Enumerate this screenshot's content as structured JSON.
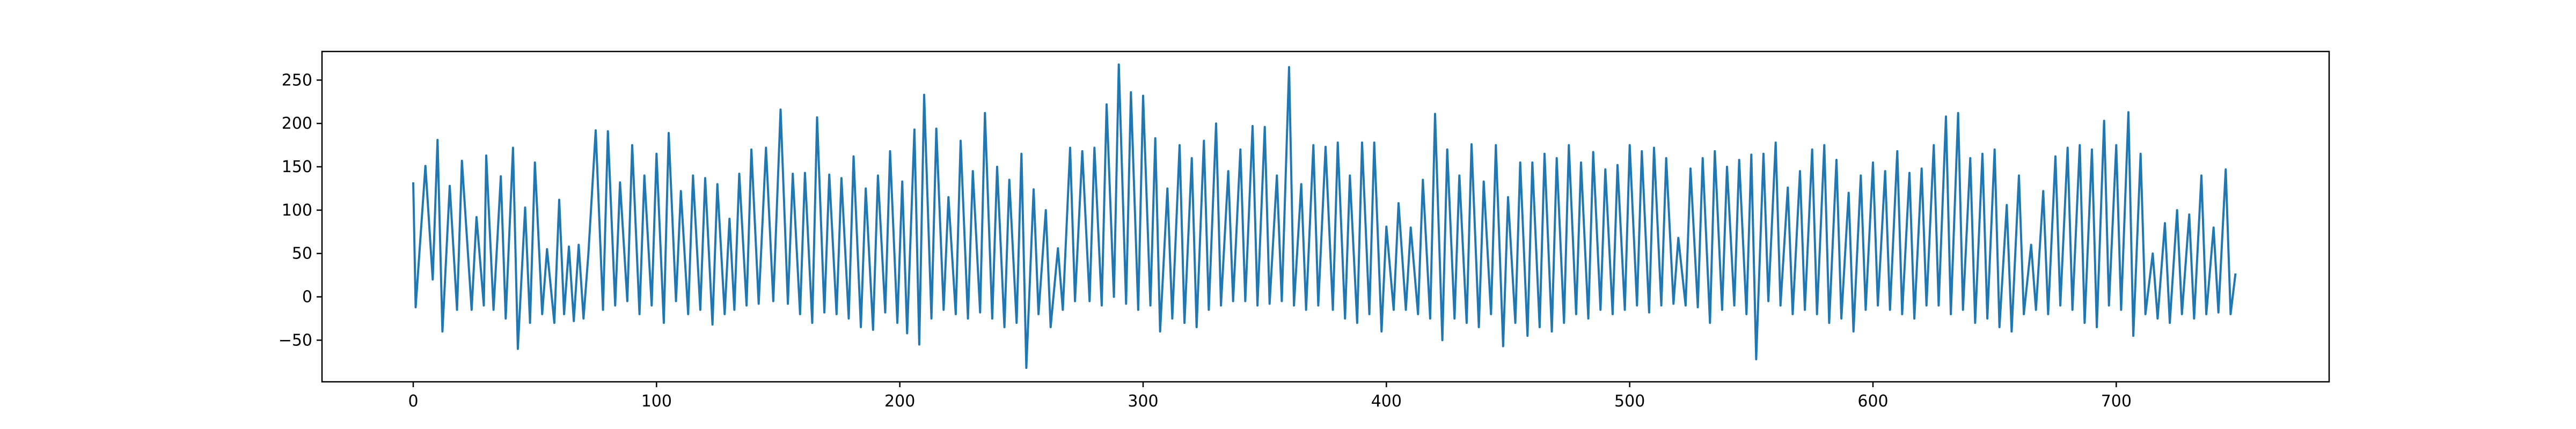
{
  "chart_data": {
    "type": "line",
    "title": "",
    "xlabel": "",
    "ylabel": "",
    "xlim": [
      -37.5,
      787.5
    ],
    "ylim": [
      -98,
      283
    ],
    "x_ticks": [
      0,
      100,
      200,
      300,
      400,
      500,
      600,
      700
    ],
    "y_ticks": [
      -50,
      0,
      50,
      100,
      150,
      200,
      250
    ],
    "grid": false,
    "legend": "none",
    "line_color": "#1f77b4",
    "peaks": [
      {
        "x": 0,
        "y": 132
      },
      {
        "x": 5,
        "y": 151
      },
      {
        "x": 10,
        "y": 181
      },
      {
        "x": 15,
        "y": 128
      },
      {
        "x": 20,
        "y": 157
      },
      {
        "x": 26,
        "y": 92
      },
      {
        "x": 30,
        "y": 163
      },
      {
        "x": 36,
        "y": 139
      },
      {
        "x": 41,
        "y": 172
      },
      {
        "x": 46,
        "y": 103
      },
      {
        "x": 50,
        "y": 155
      },
      {
        "x": 55,
        "y": 55
      },
      {
        "x": 60,
        "y": 112
      },
      {
        "x": 64,
        "y": 58
      },
      {
        "x": 68,
        "y": 60
      },
      {
        "x": 72,
        "y": 50
      },
      {
        "x": 75,
        "y": 192
      },
      {
        "x": 80,
        "y": 191
      },
      {
        "x": 85,
        "y": 132
      },
      {
        "x": 90,
        "y": 175
      },
      {
        "x": 95,
        "y": 140
      },
      {
        "x": 100,
        "y": 165
      },
      {
        "x": 105,
        "y": 189
      },
      {
        "x": 110,
        "y": 122
      },
      {
        "x": 115,
        "y": 140
      },
      {
        "x": 120,
        "y": 137
      },
      {
        "x": 125,
        "y": 130
      },
      {
        "x": 130,
        "y": 90
      },
      {
        "x": 134,
        "y": 142
      },
      {
        "x": 139,
        "y": 170
      },
      {
        "x": 145,
        "y": 172
      },
      {
        "x": 151,
        "y": 216
      },
      {
        "x": 156,
        "y": 142
      },
      {
        "x": 161,
        "y": 143
      },
      {
        "x": 166,
        "y": 207
      },
      {
        "x": 171,
        "y": 141
      },
      {
        "x": 176,
        "y": 137
      },
      {
        "x": 181,
        "y": 162
      },
      {
        "x": 186,
        "y": 125
      },
      {
        "x": 191,
        "y": 140
      },
      {
        "x": 196,
        "y": 168
      },
      {
        "x": 201,
        "y": 133
      },
      {
        "x": 206,
        "y": 193
      },
      {
        "x": 210,
        "y": 233
      },
      {
        "x": 215,
        "y": 194
      },
      {
        "x": 220,
        "y": 115
      },
      {
        "x": 225,
        "y": 180
      },
      {
        "x": 230,
        "y": 145
      },
      {
        "x": 235,
        "y": 212
      },
      {
        "x": 240,
        "y": 150
      },
      {
        "x": 245,
        "y": 135
      },
      {
        "x": 250,
        "y": 165
      },
      {
        "x": 255,
        "y": 124
      },
      {
        "x": 260,
        "y": 100
      },
      {
        "x": 265,
        "y": 56
      },
      {
        "x": 270,
        "y": 172
      },
      {
        "x": 275,
        "y": 168
      },
      {
        "x": 280,
        "y": 172
      },
      {
        "x": 285,
        "y": 222
      },
      {
        "x": 290,
        "y": 268
      },
      {
        "x": 295,
        "y": 236
      },
      {
        "x": 300,
        "y": 232
      },
      {
        "x": 305,
        "y": 183
      },
      {
        "x": 310,
        "y": 125
      },
      {
        "x": 315,
        "y": 175
      },
      {
        "x": 320,
        "y": 160
      },
      {
        "x": 325,
        "y": 180
      },
      {
        "x": 330,
        "y": 200
      },
      {
        "x": 335,
        "y": 145
      },
      {
        "x": 340,
        "y": 170
      },
      {
        "x": 345,
        "y": 197
      },
      {
        "x": 350,
        "y": 196
      },
      {
        "x": 355,
        "y": 140
      },
      {
        "x": 360,
        "y": 265
      },
      {
        "x": 365,
        "y": 130
      },
      {
        "x": 370,
        "y": 175
      },
      {
        "x": 375,
        "y": 173
      },
      {
        "x": 380,
        "y": 178
      },
      {
        "x": 385,
        "y": 140
      },
      {
        "x": 390,
        "y": 178
      },
      {
        "x": 395,
        "y": 178
      },
      {
        "x": 400,
        "y": 81
      },
      {
        "x": 405,
        "y": 108
      },
      {
        "x": 410,
        "y": 80
      },
      {
        "x": 415,
        "y": 135
      },
      {
        "x": 420,
        "y": 211
      },
      {
        "x": 425,
        "y": 170
      },
      {
        "x": 430,
        "y": 140
      },
      {
        "x": 435,
        "y": 176
      },
      {
        "x": 440,
        "y": 133
      },
      {
        "x": 445,
        "y": 175
      },
      {
        "x": 450,
        "y": 115
      },
      {
        "x": 455,
        "y": 155
      },
      {
        "x": 460,
        "y": 155
      },
      {
        "x": 465,
        "y": 165
      },
      {
        "x": 470,
        "y": 160
      },
      {
        "x": 475,
        "y": 175
      },
      {
        "x": 480,
        "y": 155
      },
      {
        "x": 485,
        "y": 167
      },
      {
        "x": 490,
        "y": 147
      },
      {
        "x": 495,
        "y": 152
      },
      {
        "x": 500,
        "y": 175
      },
      {
        "x": 505,
        "y": 168
      },
      {
        "x": 510,
        "y": 172
      },
      {
        "x": 515,
        "y": 160
      },
      {
        "x": 520,
        "y": 68
      },
      {
        "x": 525,
        "y": 148
      },
      {
        "x": 530,
        "y": 160
      },
      {
        "x": 535,
        "y": 168
      },
      {
        "x": 540,
        "y": 150
      },
      {
        "x": 545,
        "y": 158
      },
      {
        "x": 550,
        "y": 164
      },
      {
        "x": 555,
        "y": 165
      },
      {
        "x": 560,
        "y": 178
      },
      {
        "x": 565,
        "y": 126
      },
      {
        "x": 570,
        "y": 145
      },
      {
        "x": 575,
        "y": 170
      },
      {
        "x": 580,
        "y": 175
      },
      {
        "x": 585,
        "y": 158
      },
      {
        "x": 590,
        "y": 120
      },
      {
        "x": 595,
        "y": 140
      },
      {
        "x": 600,
        "y": 155
      },
      {
        "x": 605,
        "y": 145
      },
      {
        "x": 610,
        "y": 168
      },
      {
        "x": 615,
        "y": 143
      },
      {
        "x": 620,
        "y": 148
      },
      {
        "x": 625,
        "y": 175
      },
      {
        "x": 630,
        "y": 208
      },
      {
        "x": 635,
        "y": 212
      },
      {
        "x": 640,
        "y": 160
      },
      {
        "x": 645,
        "y": 165
      },
      {
        "x": 650,
        "y": 170
      },
      {
        "x": 655,
        "y": 106
      },
      {
        "x": 660,
        "y": 140
      },
      {
        "x": 665,
        "y": 60
      },
      {
        "x": 670,
        "y": 122
      },
      {
        "x": 675,
        "y": 162
      },
      {
        "x": 680,
        "y": 172
      },
      {
        "x": 685,
        "y": 175
      },
      {
        "x": 690,
        "y": 170
      },
      {
        "x": 695,
        "y": 203
      },
      {
        "x": 700,
        "y": 175
      },
      {
        "x": 705,
        "y": 213
      },
      {
        "x": 710,
        "y": 165
      },
      {
        "x": 715,
        "y": 50
      },
      {
        "x": 720,
        "y": 85
      },
      {
        "x": 725,
        "y": 100
      },
      {
        "x": 730,
        "y": 95
      },
      {
        "x": 735,
        "y": 140
      },
      {
        "x": 740,
        "y": 80
      },
      {
        "x": 745,
        "y": 147
      },
      {
        "x": 749,
        "y": 27
      }
    ],
    "troughs": [
      {
        "x": 1,
        "y": -12
      },
      {
        "x": 8,
        "y": 20
      },
      {
        "x": 12,
        "y": -40
      },
      {
        "x": 18,
        "y": -15
      },
      {
        "x": 24,
        "y": -15
      },
      {
        "x": 29,
        "y": -10
      },
      {
        "x": 33,
        "y": -15
      },
      {
        "x": 38,
        "y": -25
      },
      {
        "x": 43,
        "y": -60
      },
      {
        "x": 48,
        "y": -30
      },
      {
        "x": 53,
        "y": -20
      },
      {
        "x": 58,
        "y": -30
      },
      {
        "x": 62,
        "y": -20
      },
      {
        "x": 66,
        "y": -28
      },
      {
        "x": 70,
        "y": -25
      },
      {
        "x": 78,
        "y": -15
      },
      {
        "x": 83,
        "y": -10
      },
      {
        "x": 88,
        "y": -5
      },
      {
        "x": 93,
        "y": -20
      },
      {
        "x": 98,
        "y": -10
      },
      {
        "x": 103,
        "y": -30
      },
      {
        "x": 108,
        "y": -5
      },
      {
        "x": 113,
        "y": -20
      },
      {
        "x": 118,
        "y": -15
      },
      {
        "x": 123,
        "y": -32
      },
      {
        "x": 128,
        "y": -20
      },
      {
        "x": 132,
        "y": -15
      },
      {
        "x": 137,
        "y": -10
      },
      {
        "x": 142,
        "y": -8
      },
      {
        "x": 148,
        "y": -5
      },
      {
        "x": 154,
        "y": -8
      },
      {
        "x": 159,
        "y": -20
      },
      {
        "x": 164,
        "y": -30
      },
      {
        "x": 169,
        "y": -18
      },
      {
        "x": 174,
        "y": -20
      },
      {
        "x": 179,
        "y": -25
      },
      {
        "x": 184,
        "y": -35
      },
      {
        "x": 189,
        "y": -38
      },
      {
        "x": 194,
        "y": -18
      },
      {
        "x": 199,
        "y": -30
      },
      {
        "x": 203,
        "y": -42
      },
      {
        "x": 208,
        "y": -55
      },
      {
        "x": 213,
        "y": -25
      },
      {
        "x": 218,
        "y": -15
      },
      {
        "x": 223,
        "y": -20
      },
      {
        "x": 228,
        "y": -25
      },
      {
        "x": 233,
        "y": -18
      },
      {
        "x": 238,
        "y": -25
      },
      {
        "x": 243,
        "y": -35
      },
      {
        "x": 248,
        "y": -30
      },
      {
        "x": 252,
        "y": -82
      },
      {
        "x": 257,
        "y": -20
      },
      {
        "x": 262,
        "y": -35
      },
      {
        "x": 267,
        "y": -15
      },
      {
        "x": 272,
        "y": -5
      },
      {
        "x": 278,
        "y": -5
      },
      {
        "x": 283,
        "y": -10
      },
      {
        "x": 288,
        "y": 0
      },
      {
        "x": 293,
        "y": -8
      },
      {
        "x": 298,
        "y": -15
      },
      {
        "x": 303,
        "y": -10
      },
      {
        "x": 307,
        "y": -40
      },
      {
        "x": 312,
        "y": -25
      },
      {
        "x": 317,
        "y": -30
      },
      {
        "x": 322,
        "y": -35
      },
      {
        "x": 327,
        "y": -15
      },
      {
        "x": 332,
        "y": -10
      },
      {
        "x": 337,
        "y": -5
      },
      {
        "x": 342,
        "y": -5
      },
      {
        "x": 347,
        "y": -10
      },
      {
        "x": 352,
        "y": -8
      },
      {
        "x": 357,
        "y": -5
      },
      {
        "x": 362,
        "y": -10
      },
      {
        "x": 367,
        "y": -15
      },
      {
        "x": 372,
        "y": -10
      },
      {
        "x": 378,
        "y": -15
      },
      {
        "x": 383,
        "y": -25
      },
      {
        "x": 388,
        "y": -30
      },
      {
        "x": 393,
        "y": -20
      },
      {
        "x": 398,
        "y": -40
      },
      {
        "x": 403,
        "y": -15
      },
      {
        "x": 408,
        "y": -15
      },
      {
        "x": 413,
        "y": -20
      },
      {
        "x": 418,
        "y": -25
      },
      {
        "x": 423,
        "y": -50
      },
      {
        "x": 428,
        "y": -25
      },
      {
        "x": 433,
        "y": -30
      },
      {
        "x": 438,
        "y": -35
      },
      {
        "x": 443,
        "y": -20
      },
      {
        "x": 448,
        "y": -57
      },
      {
        "x": 453,
        "y": -30
      },
      {
        "x": 458,
        "y": -45
      },
      {
        "x": 463,
        "y": -35
      },
      {
        "x": 468,
        "y": -40
      },
      {
        "x": 473,
        "y": -30
      },
      {
        "x": 478,
        "y": -20
      },
      {
        "x": 483,
        "y": -25
      },
      {
        "x": 488,
        "y": -15
      },
      {
        "x": 493,
        "y": -20
      },
      {
        "x": 498,
        "y": -15
      },
      {
        "x": 503,
        "y": -10
      },
      {
        "x": 508,
        "y": -18
      },
      {
        "x": 513,
        "y": -10
      },
      {
        "x": 518,
        "y": -8
      },
      {
        "x": 523,
        "y": -10
      },
      {
        "x": 528,
        "y": -12
      },
      {
        "x": 533,
        "y": -30
      },
      {
        "x": 538,
        "y": -15
      },
      {
        "x": 543,
        "y": -10
      },
      {
        "x": 548,
        "y": -20
      },
      {
        "x": 552,
        "y": -72
      },
      {
        "x": 557,
        "y": -5
      },
      {
        "x": 562,
        "y": -10
      },
      {
        "x": 567,
        "y": -20
      },
      {
        "x": 572,
        "y": -15
      },
      {
        "x": 577,
        "y": -20
      },
      {
        "x": 582,
        "y": -30
      },
      {
        "x": 587,
        "y": -25
      },
      {
        "x": 592,
        "y": -40
      },
      {
        "x": 597,
        "y": -15
      },
      {
        "x": 602,
        "y": -10
      },
      {
        "x": 607,
        "y": -15
      },
      {
        "x": 612,
        "y": -20
      },
      {
        "x": 617,
        "y": -25
      },
      {
        "x": 622,
        "y": -10
      },
      {
        "x": 627,
        "y": -10
      },
      {
        "x": 632,
        "y": -20
      },
      {
        "x": 637,
        "y": -15
      },
      {
        "x": 642,
        "y": -30
      },
      {
        "x": 647,
        "y": -25
      },
      {
        "x": 652,
        "y": -35
      },
      {
        "x": 657,
        "y": -40
      },
      {
        "x": 662,
        "y": -20
      },
      {
        "x": 667,
        "y": -15
      },
      {
        "x": 672,
        "y": -20
      },
      {
        "x": 677,
        "y": -10
      },
      {
        "x": 682,
        "y": -15
      },
      {
        "x": 687,
        "y": -30
      },
      {
        "x": 692,
        "y": -35
      },
      {
        "x": 697,
        "y": -10
      },
      {
        "x": 702,
        "y": -15
      },
      {
        "x": 707,
        "y": -45
      },
      {
        "x": 712,
        "y": -20
      },
      {
        "x": 717,
        "y": -25
      },
      {
        "x": 722,
        "y": -30
      },
      {
        "x": 727,
        "y": -20
      },
      {
        "x": 732,
        "y": -25
      },
      {
        "x": 737,
        "y": -20
      },
      {
        "x": 742,
        "y": -18
      },
      {
        "x": 747,
        "y": -20
      }
    ]
  }
}
